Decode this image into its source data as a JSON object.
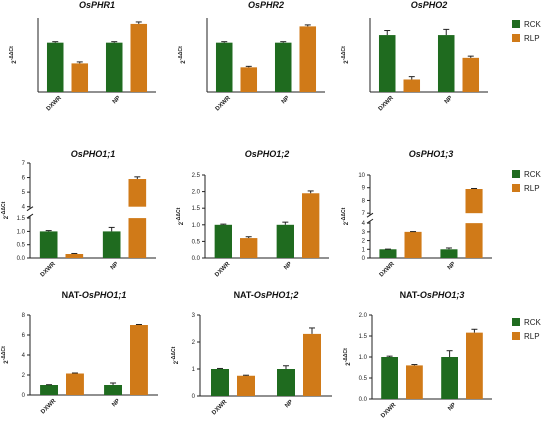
{
  "colors": {
    "RCK": "#1f6b1f",
    "RLP": "#d07a18"
  },
  "legend": [
    {
      "key": "RCK",
      "label": "RCK"
    },
    {
      "key": "RLP",
      "label": "RLP"
    }
  ],
  "chart_data": [
    {
      "type": "bar",
      "title_prefix": "",
      "title_italic": "OsPHR1",
      "ylabel": "2-ΔΔCt",
      "categories": [
        "DXWR",
        "NP"
      ],
      "series": [
        {
          "name": "RCK",
          "values": [
            1.0,
            1.0
          ],
          "errors": [
            0.02,
            0.02
          ]
        },
        {
          "name": "RLP",
          "values": [
            0.58,
            1.38
          ],
          "errors": [
            0.03,
            0.04
          ]
        }
      ],
      "ylim": [
        0,
        1.5
      ],
      "yticks": [],
      "grid": false,
      "legend": "none"
    },
    {
      "type": "bar",
      "title_prefix": "",
      "title_italic": "OsPHR2",
      "ylabel": "2-ΔΔCt",
      "categories": [
        "DXWR",
        "NP"
      ],
      "series": [
        {
          "name": "RCK",
          "values": [
            1.0,
            1.0
          ],
          "errors": [
            0.02,
            0.02
          ]
        },
        {
          "name": "RLP",
          "values": [
            0.5,
            1.33
          ],
          "errors": [
            0.02,
            0.03
          ]
        }
      ],
      "ylim": [
        0,
        1.5
      ],
      "yticks": [],
      "grid": false,
      "legend": "none"
    },
    {
      "type": "bar",
      "title_prefix": "",
      "title_italic": "OsPHO2",
      "ylabel": "2-ΔΔCt",
      "categories": [
        "DXWR",
        "NP"
      ],
      "series": [
        {
          "name": "RCK",
          "values": [
            1.0,
            1.0
          ],
          "errors": [
            0.08,
            0.1
          ]
        },
        {
          "name": "RLP",
          "values": [
            0.22,
            0.6
          ],
          "errors": [
            0.05,
            0.03
          ]
        }
      ],
      "ylim": [
        0,
        1.3
      ],
      "yticks": [],
      "grid": false,
      "legend": "right"
    },
    {
      "type": "bar",
      "title_prefix": "",
      "title_italic": "OsPHO1;1",
      "ylabel": "2-ΔΔCt",
      "categories": [
        "DXWR",
        "NP"
      ],
      "series": [
        {
          "name": "RCK",
          "values": [
            1.0,
            1.0
          ],
          "errors": [
            0.03,
            0.15
          ]
        },
        {
          "name": "RLP",
          "values": [
            0.15,
            5.9
          ],
          "errors": [
            0.02,
            0.15
          ]
        }
      ],
      "broken_axis": {
        "lower": [
          0,
          1.5
        ],
        "upper": [
          4,
          7
        ]
      },
      "yticks": [
        "0.0",
        "0.5",
        "1.0",
        "1.5",
        "4",
        "5",
        "6",
        "7"
      ],
      "yticks_lower": [
        0,
        0.5,
        1.0,
        1.5
      ],
      "yticks_upper": [
        4,
        5,
        6,
        7
      ],
      "grid": false,
      "legend": "right"
    },
    {
      "type": "bar",
      "title_prefix": "",
      "title_italic": "OsPHO1;2",
      "ylabel": "2-ΔΔCt",
      "categories": [
        "DXWR",
        "NP"
      ],
      "series": [
        {
          "name": "RCK",
          "values": [
            1.0,
            1.0
          ],
          "errors": [
            0.02,
            0.08
          ]
        },
        {
          "name": "RLP",
          "values": [
            0.6,
            1.95
          ],
          "errors": [
            0.04,
            0.07
          ]
        }
      ],
      "ylim": [
        0,
        2.5
      ],
      "yticks": [
        "0.0",
        "0.5",
        "1.0",
        "1.5",
        "2.0",
        "2.5"
      ],
      "yticks_values": [
        0,
        0.5,
        1.0,
        1.5,
        2.0,
        2.5
      ],
      "grid": false,
      "legend": "none"
    },
    {
      "type": "bar",
      "title_prefix": "",
      "title_italic": "OsPHO1;3",
      "ylabel": "2-ΔΔCt",
      "categories": [
        "DXWR",
        "NP"
      ],
      "series": [
        {
          "name": "RCK",
          "values": [
            1.0,
            1.0
          ],
          "errors": [
            0.02,
            0.15
          ]
        },
        {
          "name": "RLP",
          "values": [
            3.0,
            8.9
          ],
          "errors": [
            0.03,
            0.04
          ]
        }
      ],
      "broken_axis": {
        "lower": [
          0,
          4
        ],
        "upper": [
          7,
          10
        ]
      },
      "yticks": [
        "0",
        "1",
        "2",
        "3",
        "4",
        "7",
        "8",
        "9",
        "10"
      ],
      "yticks_lower": [
        0,
        1,
        2,
        3,
        4
      ],
      "yticks_upper": [
        7,
        8,
        9,
        10
      ],
      "grid": false,
      "legend": "right"
    },
    {
      "type": "bar",
      "title_prefix": "NAT-",
      "title_italic": "OsPHO1;1",
      "ylabel": "2-ΔΔCt",
      "categories": [
        "DXWR",
        "NP"
      ],
      "series": [
        {
          "name": "RCK",
          "values": [
            1.0,
            1.0
          ],
          "errors": [
            0.03,
            0.2
          ]
        },
        {
          "name": "RLP",
          "values": [
            2.15,
            7.0
          ],
          "errors": [
            0.05,
            0.05
          ]
        }
      ],
      "ylim": [
        0,
        8
      ],
      "yticks": [
        "0",
        "2",
        "4",
        "6",
        "8"
      ],
      "yticks_values": [
        0,
        2,
        4,
        6,
        8
      ],
      "grid": false,
      "legend": "none"
    },
    {
      "type": "bar",
      "title_prefix": "NAT-",
      "title_italic": "OsPHO1;2",
      "ylabel": "2-ΔΔCt",
      "categories": [
        "DXWR",
        "NP"
      ],
      "series": [
        {
          "name": "RCK",
          "values": [
            1.0,
            1.0
          ],
          "errors": [
            0.02,
            0.12
          ]
        },
        {
          "name": "RLP",
          "values": [
            0.75,
            2.3
          ],
          "errors": [
            0.02,
            0.22
          ]
        }
      ],
      "ylim": [
        0,
        3
      ],
      "yticks": [
        "0",
        "1",
        "2",
        "3"
      ],
      "yticks_values": [
        0,
        1,
        2,
        3
      ],
      "grid": false,
      "legend": "none"
    },
    {
      "type": "bar",
      "title_prefix": "NAT-",
      "title_italic": "OsPHO1;3",
      "ylabel": "2-ΔΔCt",
      "categories": [
        "DXWR",
        "NP"
      ],
      "series": [
        {
          "name": "RCK",
          "values": [
            1.0,
            1.0
          ],
          "errors": [
            0.02,
            0.15
          ]
        },
        {
          "name": "RLP",
          "values": [
            0.8,
            1.58
          ],
          "errors": [
            0.02,
            0.08
          ]
        }
      ],
      "ylim": [
        0,
        2.0
      ],
      "yticks": [
        "0.0",
        "0.5",
        "1.0",
        "1.5",
        "2.0"
      ],
      "yticks_values": [
        0,
        0.5,
        1.0,
        1.5,
        2.0
      ],
      "grid": false,
      "legend": "right"
    }
  ]
}
